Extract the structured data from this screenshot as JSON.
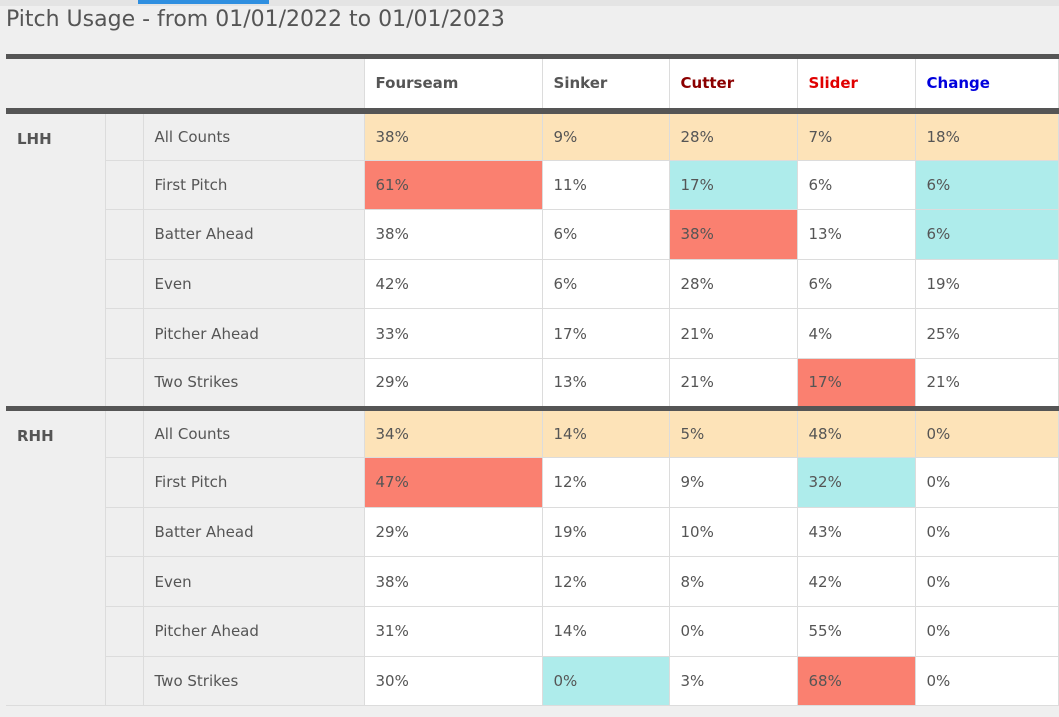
{
  "title": "Pitch Usage - from 01/01/2022 to 01/01/2023",
  "colors": {
    "tan": "#fde3b8",
    "red": "#fa8070",
    "cyan": "#aeeceb",
    "cutter_header": "#8b0000",
    "slider_header": "#e00000",
    "change_header": "#0000dd",
    "default_header": "#555555"
  },
  "columns": [
    {
      "label": "Fourseam",
      "color": "#555555"
    },
    {
      "label": "Sinker",
      "color": "#555555"
    },
    {
      "label": "Cutter",
      "color": "#8b0000"
    },
    {
      "label": "Slider",
      "color": "#e00000"
    },
    {
      "label": "Change",
      "color": "#0000dd"
    }
  ],
  "groups": [
    {
      "label": "LHH",
      "rows": [
        {
          "count": "All Counts",
          "values": [
            "38%",
            "9%",
            "28%",
            "7%",
            "18%"
          ],
          "highlight": [
            "tan",
            "tan",
            "tan",
            "tan",
            "tan"
          ]
        },
        {
          "count": "First Pitch",
          "values": [
            "61%",
            "11%",
            "17%",
            "6%",
            "6%"
          ],
          "highlight": [
            "red",
            "",
            "cyan",
            "",
            "cyan"
          ]
        },
        {
          "count": "Batter Ahead",
          "values": [
            "38%",
            "6%",
            "38%",
            "13%",
            "6%"
          ],
          "highlight": [
            "",
            "",
            "red",
            "",
            "cyan"
          ]
        },
        {
          "count": "Even",
          "values": [
            "42%",
            "6%",
            "28%",
            "6%",
            "19%"
          ],
          "highlight": [
            "",
            "",
            "",
            "",
            ""
          ]
        },
        {
          "count": "Pitcher Ahead",
          "values": [
            "33%",
            "17%",
            "21%",
            "4%",
            "25%"
          ],
          "highlight": [
            "",
            "",
            "",
            "",
            ""
          ]
        },
        {
          "count": "Two Strikes",
          "values": [
            "29%",
            "13%",
            "21%",
            "17%",
            "21%"
          ],
          "highlight": [
            "",
            "",
            "",
            "red",
            ""
          ]
        }
      ]
    },
    {
      "label": "RHH",
      "rows": [
        {
          "count": "All Counts",
          "values": [
            "34%",
            "14%",
            "5%",
            "48%",
            "0%"
          ],
          "highlight": [
            "tan",
            "tan",
            "tan",
            "tan",
            "tan"
          ]
        },
        {
          "count": "First Pitch",
          "values": [
            "47%",
            "12%",
            "9%",
            "32%",
            "0%"
          ],
          "highlight": [
            "red",
            "",
            "",
            "cyan",
            ""
          ]
        },
        {
          "count": "Batter Ahead",
          "values": [
            "29%",
            "19%",
            "10%",
            "43%",
            "0%"
          ],
          "highlight": [
            "",
            "",
            "",
            "",
            ""
          ]
        },
        {
          "count": "Even",
          "values": [
            "38%",
            "12%",
            "8%",
            "42%",
            "0%"
          ],
          "highlight": [
            "",
            "",
            "",
            "",
            ""
          ]
        },
        {
          "count": "Pitcher Ahead",
          "values": [
            "31%",
            "14%",
            "0%",
            "55%",
            "0%"
          ],
          "highlight": [
            "",
            "",
            "",
            "",
            ""
          ]
        },
        {
          "count": "Two Strikes",
          "values": [
            "30%",
            "0%",
            "3%",
            "68%",
            "0%"
          ],
          "highlight": [
            "",
            "cyan",
            "",
            "red",
            ""
          ]
        }
      ]
    }
  ]
}
